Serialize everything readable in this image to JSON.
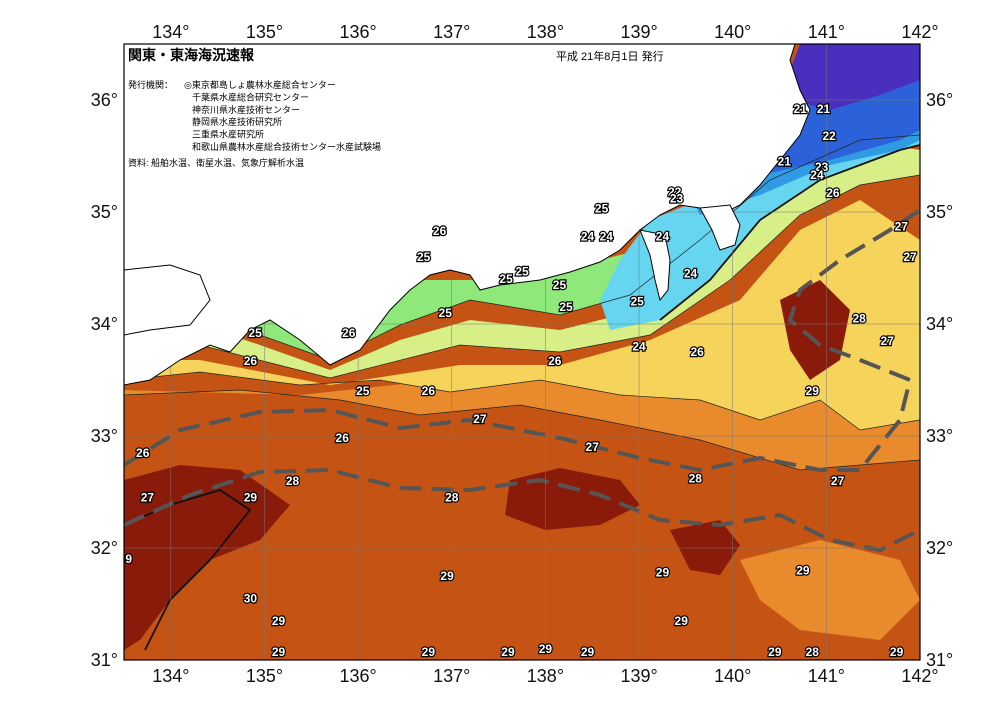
{
  "title": "関東・東海海況速報",
  "date": "平成 21年8月1日 発行",
  "issuers_label": "発行機関：",
  "issuers": [
    "◎東京都島しょ農林水産総合センター",
    "千葉県水産総合研究センター",
    "神奈川県水産技術センター",
    "静岡県水産技術研究所",
    "三重県水産研究所",
    "和歌山県農林水産総合技術センター水産試験場"
  ],
  "source": "資料: 船舶水温、衛星水温、気象庁解析水温",
  "longitude_labels": [
    "134°",
    "135°",
    "136°",
    "137°",
    "138°",
    "139°",
    "140°",
    "141°",
    "142°"
  ],
  "latitude_labels": [
    "36°",
    "35°",
    "34°",
    "33°",
    "32°",
    "31°"
  ],
  "isotherm_labels": [
    {
      "t": "21",
      "lon": 140.72,
      "lat": 35.92
    },
    {
      "t": "21",
      "lon": 140.97,
      "lat": 35.92
    },
    {
      "t": "22",
      "lon": 141.03,
      "lat": 35.68
    },
    {
      "t": "21",
      "lon": 140.55,
      "lat": 35.45
    },
    {
      "t": "23",
      "lon": 140.95,
      "lat": 35.4
    },
    {
      "t": "24",
      "lon": 140.9,
      "lat": 35.33
    },
    {
      "t": "22",
      "lon": 139.38,
      "lat": 35.18
    },
    {
      "t": "23",
      "lon": 139.4,
      "lat": 35.12
    },
    {
      "t": "25",
      "lon": 138.6,
      "lat": 35.03
    },
    {
      "t": "24",
      "lon": 138.45,
      "lat": 34.78
    },
    {
      "t": "24",
      "lon": 138.65,
      "lat": 34.78
    },
    {
      "t": "24",
      "lon": 139.25,
      "lat": 34.78
    },
    {
      "t": "26",
      "lon": 141.07,
      "lat": 35.17
    },
    {
      "t": "27",
      "lon": 141.8,
      "lat": 34.87
    },
    {
      "t": "27",
      "lon": 141.98,
      "lat": 34.6
    },
    {
      "t": "26",
      "lon": 136.87,
      "lat": 34.83
    },
    {
      "t": "25",
      "lon": 136.7,
      "lat": 34.6
    },
    {
      "t": "25",
      "lon": 137.75,
      "lat": 34.47
    },
    {
      "t": "25",
      "lon": 137.58,
      "lat": 34.4
    },
    {
      "t": "25",
      "lon": 138.15,
      "lat": 34.35
    },
    {
      "t": "24",
      "lon": 139.55,
      "lat": 34.45
    },
    {
      "t": "25",
      "lon": 138.98,
      "lat": 34.2
    },
    {
      "t": "25",
      "lon": 138.22,
      "lat": 34.15
    },
    {
      "t": "25",
      "lon": 136.93,
      "lat": 34.1
    },
    {
      "t": "28",
      "lon": 141.35,
      "lat": 34.05
    },
    {
      "t": "27",
      "lon": 141.65,
      "lat": 33.85
    },
    {
      "t": "25",
      "lon": 134.9,
      "lat": 33.92
    },
    {
      "t": "26",
      "lon": 135.9,
      "lat": 33.92
    },
    {
      "t": "24",
      "lon": 139.0,
      "lat": 33.8
    },
    {
      "t": "26",
      "lon": 139.62,
      "lat": 33.75
    },
    {
      "t": "26",
      "lon": 134.85,
      "lat": 33.67
    },
    {
      "t": "26",
      "lon": 138.1,
      "lat": 33.67
    },
    {
      "t": "26",
      "lon": 136.75,
      "lat": 33.4
    },
    {
      "t": "25",
      "lon": 136.05,
      "lat": 33.4
    },
    {
      "t": "29",
      "lon": 140.85,
      "lat": 33.4
    },
    {
      "t": "27",
      "lon": 137.3,
      "lat": 33.15
    },
    {
      "t": "26",
      "lon": 135.83,
      "lat": 32.98
    },
    {
      "t": "26",
      "lon": 133.7,
      "lat": 32.85
    },
    {
      "t": "27",
      "lon": 138.5,
      "lat": 32.9
    },
    {
      "t": "28",
      "lon": 139.6,
      "lat": 32.62
    },
    {
      "t": "28",
      "lon": 135.3,
      "lat": 32.6
    },
    {
      "t": "27",
      "lon": 141.12,
      "lat": 32.6
    },
    {
      "t": "29",
      "lon": 134.85,
      "lat": 32.45
    },
    {
      "t": "28",
      "lon": 137.0,
      "lat": 32.45
    },
    {
      "t": "27",
      "lon": 133.75,
      "lat": 32.45
    },
    {
      "t": "9",
      "lon": 133.55,
      "lat": 31.9
    },
    {
      "t": "29",
      "lon": 136.95,
      "lat": 31.75
    },
    {
      "t": "29",
      "lon": 139.25,
      "lat": 31.78
    },
    {
      "t": "29",
      "lon": 140.75,
      "lat": 31.8
    },
    {
      "t": "30",
      "lon": 134.85,
      "lat": 31.55
    },
    {
      "t": "29",
      "lon": 135.15,
      "lat": 31.35
    },
    {
      "t": "29",
      "lon": 139.45,
      "lat": 31.35
    },
    {
      "t": "29",
      "lon": 138.0,
      "lat": 31.1
    },
    {
      "t": "28",
      "lon": 140.85,
      "lat": 31.0
    },
    {
      "t": "29",
      "lon": 135.15,
      "lat": 30.75
    },
    {
      "t": "29",
      "lon": 137.6,
      "lat": 30.55
    },
    {
      "t": "29",
      "lon": 138.45,
      "lat": 30.5
    },
    {
      "t": "29",
      "lon": 136.75,
      "lat": 30.4
    },
    {
      "t": "29",
      "lon": 140.45,
      "lat": 30.05
    },
    {
      "t": "29",
      "lon": 141.75,
      "lat": 30.05
    }
  ],
  "colors": {
    "t21": "#4a2fbf",
    "t22": "#2b62d9",
    "t23": "#2f9be3",
    "t24": "#66d6f0",
    "t25": "#8ee87a",
    "t26": "#d7ef86",
    "t27": "#f6d35a",
    "t28": "#e98a2c",
    "t29": "#c55414",
    "t30": "#8a1a0a",
    "land": "#ffffff"
  }
}
